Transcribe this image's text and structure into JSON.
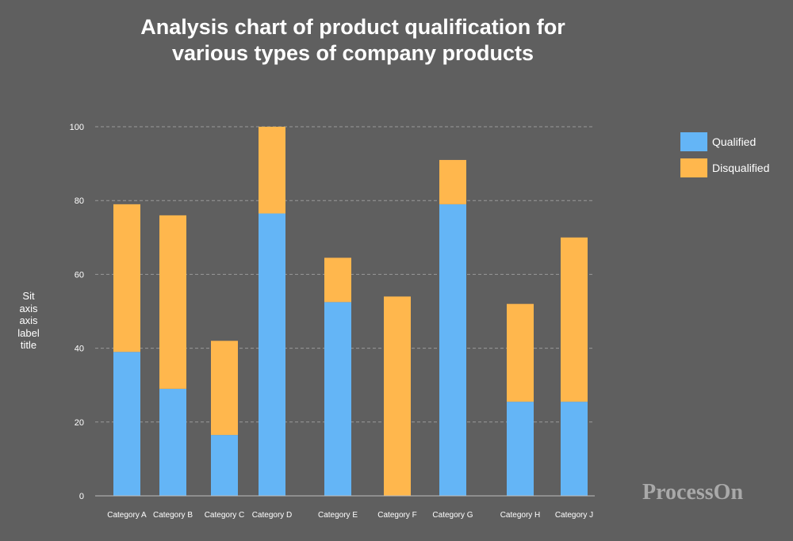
{
  "chart_data": {
    "type": "bar",
    "stacked": true,
    "title_lines": [
      "Analysis chart of product qualification for",
      "various types of company products"
    ],
    "ylabel_lines": [
      "Sit",
      "axis",
      "axis",
      "label",
      "title"
    ],
    "categories": [
      "Category A",
      "Category B",
      "Category C",
      "Category D",
      "Category E",
      "Category F",
      "Category G",
      "Category H",
      "Category J"
    ],
    "series": [
      {
        "name": "Qualified",
        "color": "#64b5f6",
        "values": [
          39,
          29,
          16.5,
          76.5,
          52.5,
          0,
          79,
          25.5,
          25.5
        ]
      },
      {
        "name": "Disqualified",
        "color": "#ffb74d",
        "values": [
          40,
          47,
          25.5,
          23.5,
          12,
          54,
          12,
          26.5,
          44.5
        ]
      }
    ],
    "yticks": [
      0,
      20,
      40,
      60,
      80,
      100
    ],
    "ylim": [
      0,
      100
    ],
    "grid": true,
    "legend_position": "right"
  },
  "watermark": "ProcessOn"
}
